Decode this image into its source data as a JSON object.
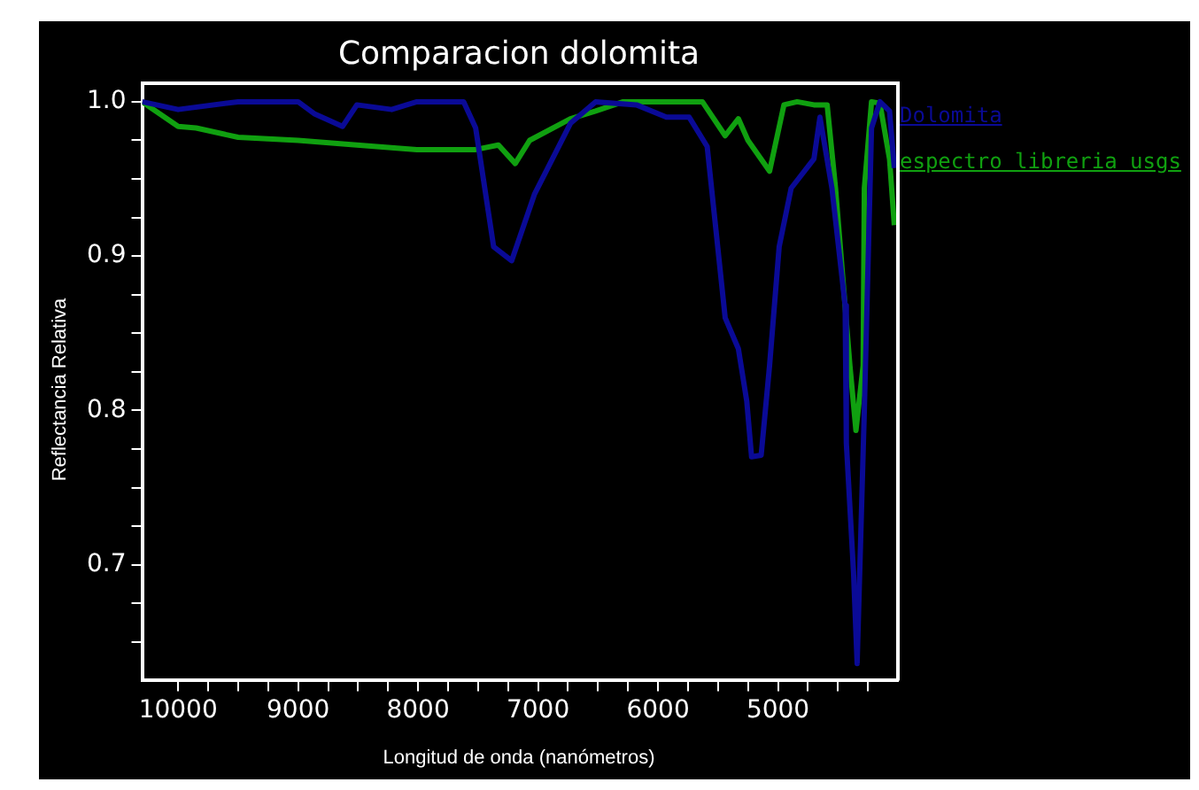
{
  "chart_data": {
    "type": "line",
    "title": "Comparacion dolomita",
    "xlabel": "Longitud de onda (nanómetros)",
    "ylabel": "Reflectancia Relativa",
    "xlim": [
      10300,
      4000
    ],
    "xticks": [
      10000,
      {
        "value": 9750,
        "label": null
      },
      {
        "value": 9500,
        "label": null
      },
      {
        "value": 9250,
        "label": null
      },
      9000,
      {
        "value": 8750,
        "label": null
      },
      {
        "value": 8500,
        "label": null
      },
      {
        "value": 8250,
        "label": null
      },
      8000,
      {
        "value": 7750,
        "label": null
      },
      {
        "value": 7500,
        "label": null
      },
      {
        "value": 7250,
        "label": null
      },
      7000,
      {
        "value": 6750,
        "label": null
      },
      {
        "value": 6500,
        "label": null
      },
      {
        "value": 6250,
        "label": null
      },
      6000,
      {
        "value": 5750,
        "label": null
      },
      {
        "value": 5500,
        "label": null
      },
      {
        "value": 5250,
        "label": null
      },
      5000,
      {
        "value": 4750,
        "label": null
      },
      {
        "value": 4500,
        "label": null
      },
      {
        "value": 4250,
        "label": null
      }
    ],
    "ylim": [
      0.625,
      1.012
    ],
    "yticks": [
      {
        "value": 0.65,
        "label": null
      },
      {
        "value": 0.675,
        "label": null
      },
      0.7,
      {
        "value": 0.725,
        "label": null
      },
      {
        "value": 0.75,
        "label": null
      },
      {
        "value": 0.775,
        "label": null
      },
      0.8,
      {
        "value": 0.825,
        "label": null
      },
      {
        "value": 0.85,
        "label": null
      },
      {
        "value": 0.875,
        "label": null
      },
      0.9,
      {
        "value": 0.925,
        "label": null
      },
      {
        "value": 0.95,
        "label": null
      },
      {
        "value": 0.975,
        "label": null
      },
      {
        "value": 1,
        "label": "1.0"
      }
    ],
    "grid": false,
    "legend": "top right",
    "marker": "none",
    "line_style": "solid",
    "series": [
      {
        "name": "Dolomita",
        "color": "#0a0a96",
        "x": [
          10300,
          10000,
          9500,
          9000,
          8860,
          8630,
          8510,
          8220,
          8010,
          7620,
          7520,
          7370,
          7220,
          7030,
          6730,
          6520,
          6180,
          5930,
          5740,
          5590,
          5440,
          5330,
          5260,
          5220,
          5140,
          5070,
          4990,
          4890,
          4700,
          4650,
          4550,
          4440,
          4430,
          4370,
          4340,
          4280,
          4220,
          4150,
          4070,
          4030
        ],
        "values": [
          1.0,
          0.995,
          1.0,
          1.0,
          0.992,
          0.984,
          0.998,
          0.995,
          1.0,
          1.0,
          0.983,
          0.906,
          0.897,
          0.94,
          0.986,
          1.0,
          0.998,
          0.99,
          0.99,
          0.971,
          0.86,
          0.84,
          0.806,
          0.77,
          0.771,
          0.829,
          0.906,
          0.944,
          0.963,
          0.99,
          0.944,
          0.868,
          0.779,
          0.695,
          0.636,
          0.8,
          0.983,
          1.0,
          0.994,
          0.957
        ]
      },
      {
        "name": "espectro libreria usgs",
        "color": "#10a010",
        "x": [
          10300,
          10000,
          9850,
          9500,
          9000,
          8510,
          8010,
          7520,
          7330,
          7190,
          7070,
          6730,
          6520,
          6290,
          6180,
          5880,
          5630,
          5440,
          5330,
          5250,
          5070,
          4950,
          4840,
          4700,
          4590,
          4520,
          4400,
          4350,
          4290,
          4280,
          4220,
          4150,
          4070,
          4030
        ],
        "values": [
          1.0,
          0.984,
          0.983,
          0.977,
          0.975,
          0.972,
          0.969,
          0.969,
          0.972,
          0.96,
          0.975,
          0.989,
          0.994,
          1.0,
          1.0,
          1.0,
          1.0,
          0.978,
          0.989,
          0.975,
          0.955,
          0.998,
          1.0,
          0.998,
          0.998,
          0.944,
          0.829,
          0.787,
          0.829,
          0.944,
          1.0,
          0.999,
          0.963,
          0.92
        ]
      }
    ]
  }
}
